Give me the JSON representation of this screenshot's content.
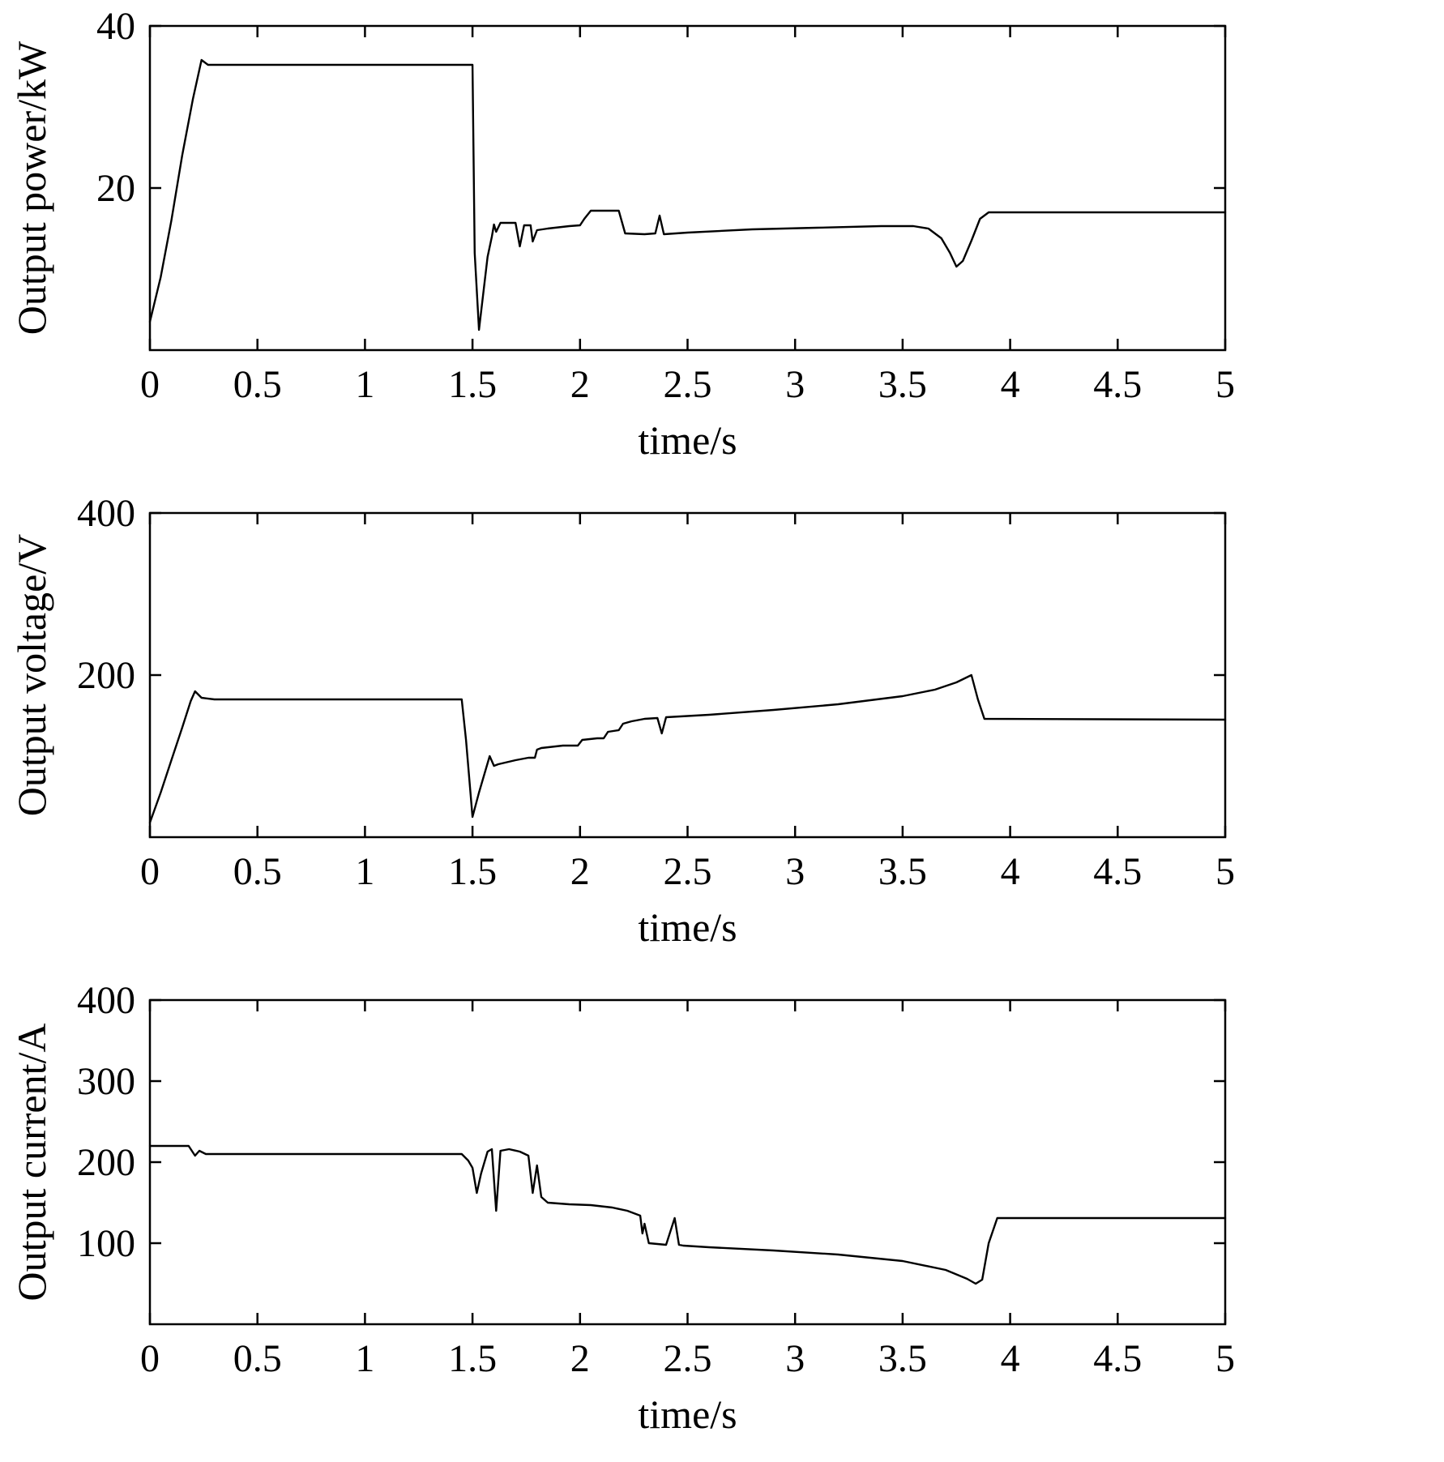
{
  "figure": {
    "background": "#ffffff",
    "line_color": "#000000",
    "axis_color": "#000000"
  },
  "chart_data": [
    {
      "type": "line",
      "title": "",
      "xlabel": "time/s",
      "ylabel": "Output power/kW",
      "xlim": [
        0,
        5
      ],
      "ylim": [
        0,
        40
      ],
      "grid": false,
      "legend_position": "none",
      "xtick_values": [
        0,
        0.5,
        1,
        1.5,
        2,
        2.5,
        3,
        3.5,
        4,
        4.5,
        5
      ],
      "xtick_labels": [
        "0",
        "0.5",
        "1",
        "1.5",
        "2",
        "2.5",
        "3",
        "3.5",
        "4",
        "4.5",
        "5"
      ],
      "ytick_values": [
        20,
        40
      ],
      "ytick_labels": [
        "20",
        "40"
      ],
      "series": [
        {
          "name": "output power",
          "x": [
            0,
            0.05,
            0.1,
            0.15,
            0.2,
            0.24,
            0.27,
            0.35,
            1.5,
            1.51,
            1.53,
            1.55,
            1.57,
            1.59,
            1.6,
            1.61,
            1.63,
            1.7,
            1.72,
            1.74,
            1.77,
            1.78,
            1.8,
            1.85,
            1.95,
            2.0,
            2.02,
            2.05,
            2.18,
            2.21,
            2.3,
            2.35,
            2.37,
            2.39,
            2.5,
            2.8,
            3.1,
            3.4,
            3.55,
            3.62,
            3.68,
            3.72,
            3.75,
            3.78,
            3.82,
            3.86,
            3.9,
            5.0
          ],
          "y": [
            3.5,
            9,
            16,
            24,
            31,
            35.8,
            35.2,
            35.2,
            35.2,
            12,
            2.5,
            7,
            11.5,
            14,
            15.5,
            14.6,
            15.7,
            15.7,
            12.8,
            15.4,
            15.4,
            13.4,
            14.8,
            15.0,
            15.3,
            15.4,
            16.2,
            17.2,
            17.2,
            14.4,
            14.3,
            14.4,
            16.6,
            14.3,
            14.5,
            14.9,
            15.1,
            15.3,
            15.3,
            15.0,
            13.8,
            12.0,
            10.3,
            11.0,
            13.5,
            16.2,
            17.0,
            17.0
          ]
        }
      ]
    },
    {
      "type": "line",
      "title": "",
      "xlabel": "time/s",
      "ylabel": "Output voltage/V",
      "xlim": [
        0,
        5
      ],
      "ylim": [
        0,
        400
      ],
      "grid": false,
      "legend_position": "none",
      "xtick_values": [
        0,
        0.5,
        1,
        1.5,
        2,
        2.5,
        3,
        3.5,
        4,
        4.5,
        5
      ],
      "xtick_labels": [
        "0",
        "0.5",
        "1",
        "1.5",
        "2",
        "2.5",
        "3",
        "3.5",
        "4",
        "4.5",
        "5"
      ],
      "ytick_values": [
        200,
        400
      ],
      "ytick_labels": [
        "200",
        "400"
      ],
      "series": [
        {
          "name": "output voltage",
          "x": [
            0,
            0.05,
            0.1,
            0.15,
            0.19,
            0.21,
            0.24,
            0.3,
            1.45,
            1.47,
            1.5,
            1.53,
            1.56,
            1.58,
            1.6,
            1.62,
            1.7,
            1.76,
            1.79,
            1.8,
            1.82,
            1.92,
            1.99,
            2.01,
            2.08,
            2.11,
            2.13,
            2.18,
            2.2,
            2.24,
            2.3,
            2.36,
            2.38,
            2.4,
            2.6,
            2.9,
            3.2,
            3.5,
            3.65,
            3.75,
            3.82,
            3.85,
            3.88,
            5.0
          ],
          "y": [
            18,
            55,
            95,
            135,
            168,
            180,
            172,
            170,
            170,
            120,
            25,
            55,
            82,
            100,
            88,
            90,
            95,
            98,
            98,
            108,
            110,
            113,
            113,
            120,
            122,
            122,
            130,
            132,
            140,
            143,
            146,
            147,
            128,
            148,
            151,
            157,
            164,
            174,
            182,
            191,
            200,
            170,
            146,
            145
          ]
        }
      ]
    },
    {
      "type": "line",
      "title": "",
      "xlabel": "time/s",
      "ylabel": "Output current/A",
      "xlim": [
        0,
        5
      ],
      "ylim": [
        0,
        400
      ],
      "grid": false,
      "legend_position": "none",
      "xtick_values": [
        0,
        0.5,
        1,
        1.5,
        2,
        2.5,
        3,
        3.5,
        4,
        4.5,
        5
      ],
      "xtick_labels": [
        "0",
        "0.5",
        "1",
        "1.5",
        "2",
        "2.5",
        "3",
        "3.5",
        "4",
        "4.5",
        "5"
      ],
      "ytick_values": [
        100,
        200,
        300,
        400
      ],
      "ytick_labels": [
        "100",
        "200",
        "300",
        "400"
      ],
      "series": [
        {
          "name": "output current",
          "x": [
            0,
            0.18,
            0.21,
            0.23,
            0.26,
            1.45,
            1.48,
            1.5,
            1.52,
            1.54,
            1.57,
            1.59,
            1.61,
            1.63,
            1.67,
            1.72,
            1.76,
            1.78,
            1.8,
            1.82,
            1.85,
            1.95,
            2.05,
            2.15,
            2.22,
            2.26,
            2.28,
            2.29,
            2.3,
            2.32,
            2.4,
            2.44,
            2.46,
            2.48,
            2.6,
            2.9,
            3.2,
            3.5,
            3.7,
            3.8,
            3.84,
            3.87,
            3.9,
            3.94,
            5.0
          ],
          "y": [
            220,
            220,
            208,
            214,
            210,
            210,
            202,
            193,
            162,
            186,
            213,
            216,
            140,
            214,
            216,
            213,
            208,
            162,
            196,
            157,
            150,
            148,
            147,
            144,
            140,
            136,
            134,
            112,
            124,
            100,
            98,
            131,
            98,
            97,
            95,
            91,
            86,
            78,
            67,
            56,
            50,
            55,
            100,
            131,
            131
          ]
        }
      ]
    }
  ]
}
